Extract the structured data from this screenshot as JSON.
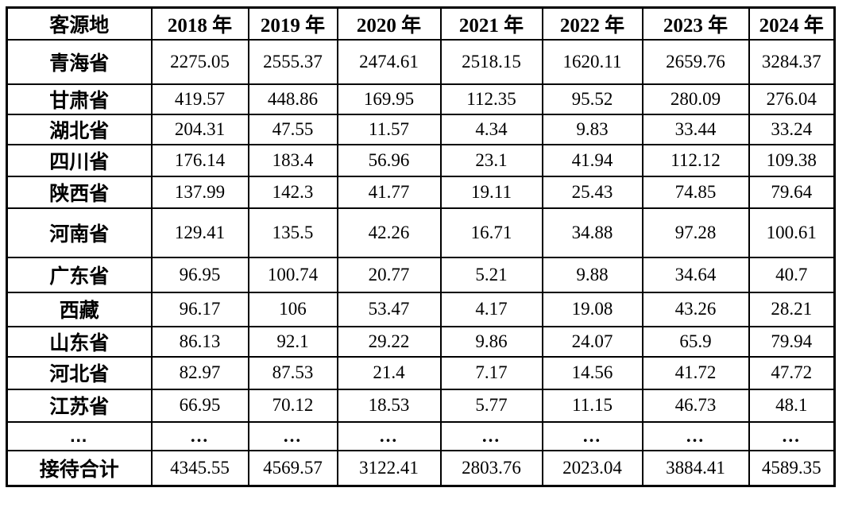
{
  "table": {
    "columns": [
      "客源地",
      "2018 年",
      "2019 年",
      "2020 年",
      "2021 年",
      "2022 年",
      "2023 年",
      "2024 年"
    ],
    "rows": [
      [
        "青海省",
        "2275.05",
        "2555.37",
        "2474.61",
        "2518.15",
        "1620.11",
        "2659.76",
        "3284.37"
      ],
      [
        "甘肃省",
        "419.57",
        "448.86",
        "169.95",
        "112.35",
        "95.52",
        "280.09",
        "276.04"
      ],
      [
        "湖北省",
        "204.31",
        "47.55",
        "11.57",
        "4.34",
        "9.83",
        "33.44",
        "33.24"
      ],
      [
        "四川省",
        "176.14",
        "183.4",
        "56.96",
        "23.1",
        "41.94",
        "112.12",
        "109.38"
      ],
      [
        "陕西省",
        "137.99",
        "142.3",
        "41.77",
        "19.11",
        "25.43",
        "74.85",
        "79.64"
      ],
      [
        "河南省",
        "129.41",
        "135.5",
        "42.26",
        "16.71",
        "34.88",
        "97.28",
        "100.61"
      ],
      [
        "广东省",
        "96.95",
        "100.74",
        "20.77",
        "5.21",
        "9.88",
        "34.64",
        "40.7"
      ],
      [
        "西藏",
        "96.17",
        "106",
        "53.47",
        "4.17",
        "19.08",
        "43.26",
        "28.21"
      ],
      [
        "山东省",
        "86.13",
        "92.1",
        "29.22",
        "9.86",
        "24.07",
        "65.9",
        "79.94"
      ],
      [
        "河北省",
        "82.97",
        "87.53",
        "21.4",
        "7.17",
        "14.56",
        "41.72",
        "47.72"
      ],
      [
        "江苏省",
        "66.95",
        "70.12",
        "18.53",
        "5.77",
        "11.15",
        "46.73",
        "48.1"
      ],
      [
        "…",
        "…",
        "…",
        "…",
        "…",
        "…",
        "…",
        "…"
      ]
    ],
    "footer": [
      "接待合计",
      "4345.55",
      "4569.57",
      "3122.41",
      "2803.76",
      "2023.04",
      "3884.41",
      "4589.35"
    ],
    "border_color": "#000000",
    "text_color": "#000000",
    "background_color": "#ffffff"
  }
}
